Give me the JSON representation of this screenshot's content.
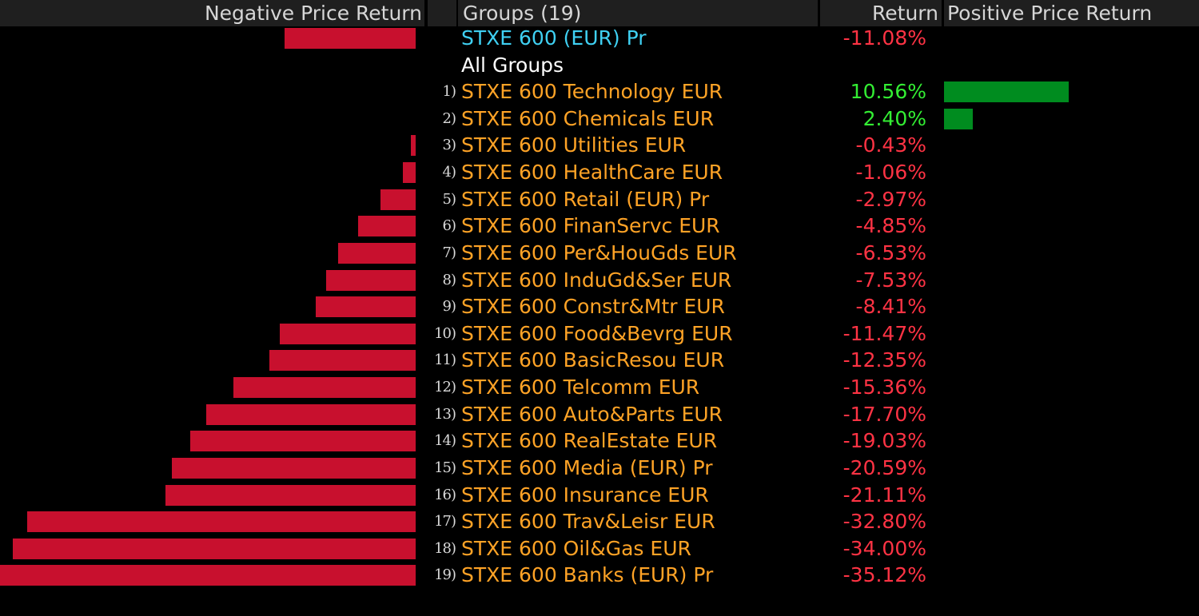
{
  "header": {
    "negative_label": "Negative Price Return",
    "groups_label": "Groups (19)",
    "return_label": "Return",
    "positive_label": "Positive Price Return"
  },
  "colors": {
    "negative_bar": "#c8102e",
    "positive_bar": "#008c1f",
    "negative_text": "#ff3344",
    "positive_text": "#33ee33",
    "group_name": "#ffa326",
    "benchmark_name": "#3fd0f2",
    "header_bg": "#1f1f1f"
  },
  "benchmark": {
    "name": "STXE 600 (EUR) Pr",
    "return_text": "-11.08%",
    "return_value": -11.08
  },
  "all_groups_label": "All Groups",
  "groups": [
    {
      "num": "1)",
      "name": "STXE 600 Technology EUR",
      "return_text": "10.56%",
      "return_value": 10.56
    },
    {
      "num": "2)",
      "name": "STXE 600 Chemicals EUR",
      "return_text": "2.40%",
      "return_value": 2.4
    },
    {
      "num": "3)",
      "name": "STXE 600 Utilities EUR",
      "return_text": "-0.43%",
      "return_value": -0.43
    },
    {
      "num": "4)",
      "name": "STXE 600 HealthCare EUR",
      "return_text": "-1.06%",
      "return_value": -1.06
    },
    {
      "num": "5)",
      "name": "STXE 600 Retail (EUR) Pr",
      "return_text": "-2.97%",
      "return_value": -2.97
    },
    {
      "num": "6)",
      "name": "STXE 600 FinanServc EUR",
      "return_text": "-4.85%",
      "return_value": -4.85
    },
    {
      "num": "7)",
      "name": "STXE 600 Per&HouGds EUR",
      "return_text": "-6.53%",
      "return_value": -6.53
    },
    {
      "num": "8)",
      "name": "STXE 600 InduGd&Ser EUR",
      "return_text": "-7.53%",
      "return_value": -7.53
    },
    {
      "num": "9)",
      "name": "STXE 600 Constr&Mtr EUR",
      "return_text": "-8.41%",
      "return_value": -8.41
    },
    {
      "num": "10)",
      "name": "STXE 600 Food&Bevrg EUR",
      "return_text": "-11.47%",
      "return_value": -11.47
    },
    {
      "num": "11)",
      "name": "STXE 600 BasicResou EUR",
      "return_text": "-12.35%",
      "return_value": -12.35
    },
    {
      "num": "12)",
      "name": "STXE 600 Telcomm EUR",
      "return_text": "-15.36%",
      "return_value": -15.36
    },
    {
      "num": "13)",
      "name": "STXE 600 Auto&Parts EUR",
      "return_text": "-17.70%",
      "return_value": -17.7
    },
    {
      "num": "14)",
      "name": "STXE 600 RealEstate EUR",
      "return_text": "-19.03%",
      "return_value": -19.03
    },
    {
      "num": "15)",
      "name": "STXE 600 Media (EUR) Pr",
      "return_text": "-20.59%",
      "return_value": -20.59
    },
    {
      "num": "16)",
      "name": "STXE 600 Insurance EUR",
      "return_text": "-21.11%",
      "return_value": -21.11
    },
    {
      "num": "17)",
      "name": "STXE 600 Trav&Leisr EUR",
      "return_text": "-32.80%",
      "return_value": -32.8
    },
    {
      "num": "18)",
      "name": "STXE 600 Oil&Gas EUR",
      "return_text": "-34.00%",
      "return_value": -34.0
    },
    {
      "num": "19)",
      "name": "STXE 600 Banks (EUR) Pr",
      "return_text": "-35.12%",
      "return_value": -35.12
    }
  ]
}
